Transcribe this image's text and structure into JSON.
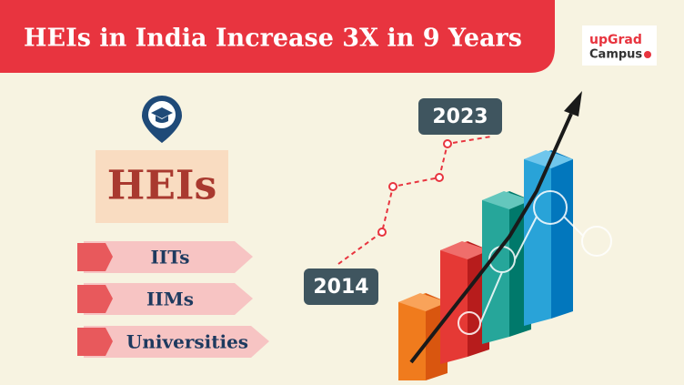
{
  "header": {
    "title": "HEIs in India Increase 3X in 9 Years"
  },
  "logo": {
    "line1": "upGrad",
    "line2": "Campus"
  },
  "heading": "HEIs",
  "items": [
    "IITs",
    "IIMs",
    "Universities"
  ],
  "timeline": {
    "start": "2014",
    "end": "2023"
  }
}
